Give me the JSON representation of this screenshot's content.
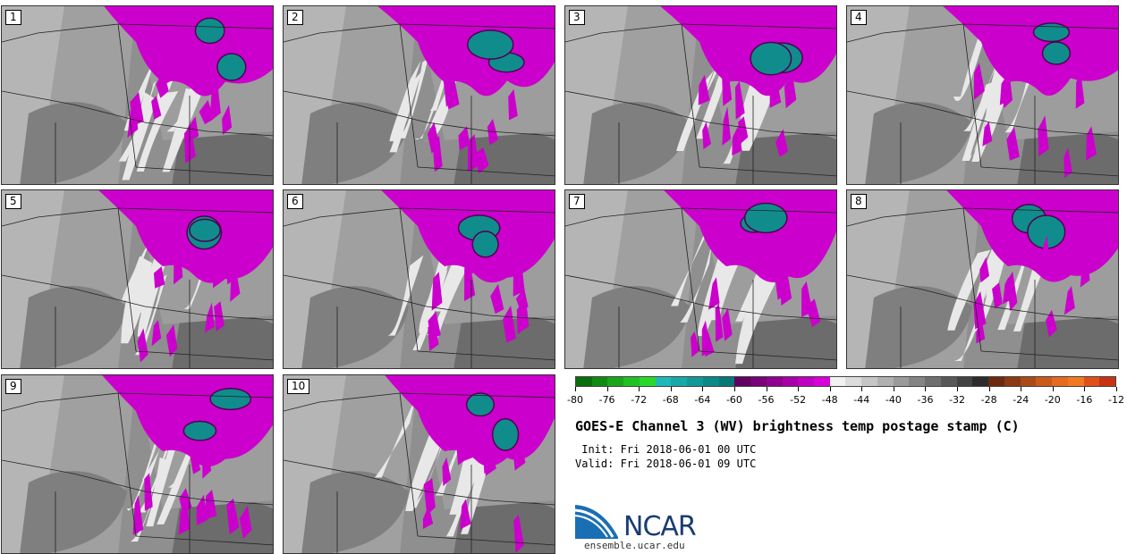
{
  "panels": [
    {
      "label": "1"
    },
    {
      "label": "2"
    },
    {
      "label": "3"
    },
    {
      "label": "4"
    },
    {
      "label": "5"
    },
    {
      "label": "6"
    },
    {
      "label": "7"
    },
    {
      "label": "8"
    },
    {
      "label": "9"
    },
    {
      "label": "10"
    }
  ],
  "colorbar": {
    "colors": [
      "#0a6e0a",
      "#128a12",
      "#1aa51a",
      "#22c022",
      "#2ad82a",
      "#1fb8b8",
      "#18a8a8",
      "#129898",
      "#0c8888",
      "#067878",
      "#600060",
      "#780078",
      "#900090",
      "#a800a8",
      "#c000c0",
      "#d800d8",
      "#f2f2f2",
      "#dcdcdc",
      "#c6c6c6",
      "#b0b0b0",
      "#9a9a9a",
      "#848484",
      "#6e6e6e",
      "#585858",
      "#424242",
      "#2c2c2c",
      "#6a2a10",
      "#8a3a14",
      "#aa4a18",
      "#ca5a1c",
      "#e66a20",
      "#f07a24",
      "#e0501a",
      "#c83212"
    ],
    "ticks": [
      "-80",
      "-76",
      "-72",
      "-68",
      "-64",
      "-60",
      "-56",
      "-52",
      "-48",
      "-44",
      "-40",
      "-36",
      "-32",
      "-28",
      "-24",
      "-20",
      "-16",
      "-12"
    ]
  },
  "title": "GOES-E Channel 3 (WV) brightness temp postage stamp (C)",
  "init": " Init: Fri 2018-06-01 00 UTC",
  "valid": "Valid: Fri 2018-06-01 09 UTC",
  "logo": {
    "text": "NCAR",
    "url": "ensemble.ucar.edu",
    "colors": {
      "swoosh": "#1a6fb4",
      "text": "#1a3c72"
    }
  }
}
